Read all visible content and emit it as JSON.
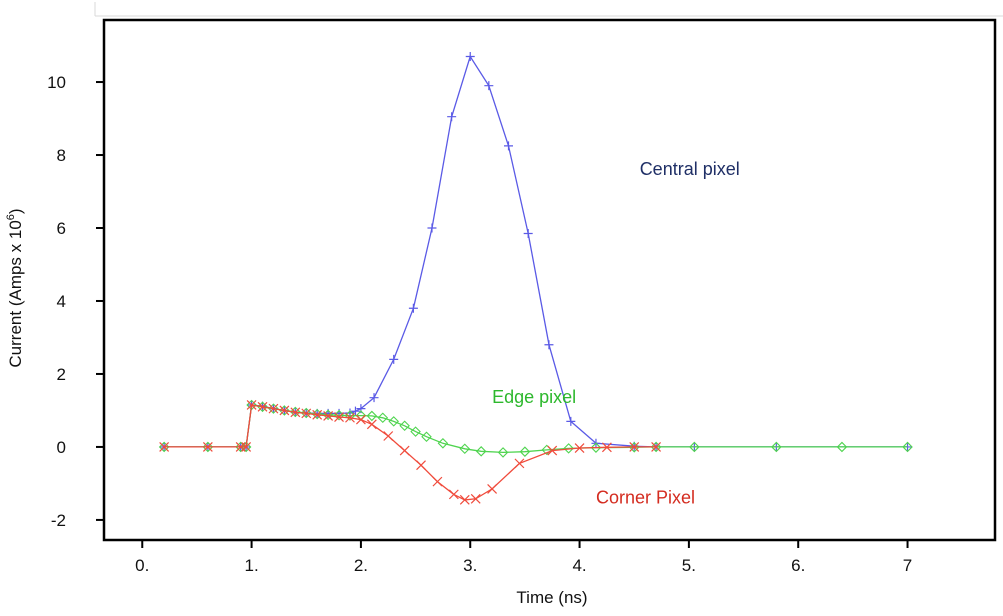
{
  "chart_data": {
    "type": "line",
    "title": "",
    "xlabel": "Time (ns)",
    "ylabel": "Current (Amps x 10",
    "ylabel_superscript": "6",
    "ylabel_suffix": ")",
    "xlim": [
      -0.35,
      7.8
    ],
    "ylim": [
      -2.55,
      11.7
    ],
    "x_ticks": [
      0,
      1,
      2,
      3,
      4,
      5,
      6,
      7
    ],
    "x_tick_labels": [
      "0.",
      "1.",
      "2.",
      "3.",
      "4.",
      "5.",
      "6.",
      "7"
    ],
    "y_ticks": [
      -2,
      0,
      2,
      4,
      6,
      8,
      10
    ],
    "y_tick_labels": [
      "-2",
      "0",
      "2",
      "4",
      "6",
      "8",
      "10"
    ],
    "grid": false,
    "legend": "none",
    "series": [
      {
        "name": "Central pixel",
        "color": "#5a5ae6",
        "label_color": "#1f2f66",
        "marker": "plus",
        "x": [
          0.2,
          0.6,
          0.9,
          0.95,
          1.0,
          1.1,
          1.2,
          1.3,
          1.4,
          1.5,
          1.6,
          1.7,
          1.8,
          1.9,
          1.95,
          2.0,
          2.12,
          2.3,
          2.48,
          2.65,
          2.83,
          3.0,
          3.17,
          3.35,
          3.53,
          3.72,
          3.92,
          4.15,
          4.5,
          4.7,
          5.05,
          5.8,
          7.0
        ],
        "y": [
          0,
          0,
          0,
          0,
          1.15,
          1.12,
          1.05,
          1.0,
          0.95,
          0.93,
          0.92,
          0.92,
          0.92,
          0.93,
          0.98,
          1.05,
          1.35,
          2.4,
          3.8,
          6.0,
          9.05,
          10.7,
          9.9,
          8.25,
          5.85,
          2.8,
          0.7,
          0.1,
          0.02,
          0,
          0,
          0,
          0
        ]
      },
      {
        "name": "Edge pixel",
        "color": "#4fd44f",
        "label_color": "#2db82d",
        "marker": "diamond",
        "x": [
          0.2,
          0.6,
          0.9,
          0.95,
          1.0,
          1.1,
          1.2,
          1.3,
          1.4,
          1.5,
          1.6,
          1.7,
          1.8,
          1.9,
          2.0,
          2.1,
          2.2,
          2.3,
          2.4,
          2.5,
          2.6,
          2.75,
          2.95,
          3.1,
          3.3,
          3.5,
          3.7,
          3.9,
          4.15,
          4.5,
          4.7,
          5.05,
          5.8,
          6.4,
          7.0
        ],
        "y": [
          0,
          0,
          0,
          0,
          1.15,
          1.1,
          1.05,
          1.0,
          0.96,
          0.93,
          0.9,
          0.88,
          0.87,
          0.86,
          0.86,
          0.85,
          0.8,
          0.7,
          0.58,
          0.42,
          0.28,
          0.1,
          -0.05,
          -0.12,
          -0.15,
          -0.13,
          -0.08,
          -0.04,
          -0.02,
          -0.01,
          0,
          0,
          0,
          0,
          0
        ]
      },
      {
        "name": "Corner Pixel",
        "color": "#f04b3c",
        "label_color": "#d42b1f",
        "marker": "x",
        "x": [
          0.2,
          0.6,
          0.9,
          0.95,
          1.0,
          1.1,
          1.2,
          1.3,
          1.4,
          1.5,
          1.6,
          1.7,
          1.8,
          1.9,
          2.0,
          2.1,
          2.25,
          2.4,
          2.55,
          2.7,
          2.85,
          2.95,
          3.05,
          3.2,
          3.45,
          3.75,
          4.0,
          4.25,
          4.5,
          4.7
        ],
        "y": [
          0,
          0,
          0,
          0,
          1.15,
          1.1,
          1.05,
          1.0,
          0.95,
          0.92,
          0.88,
          0.85,
          0.82,
          0.8,
          0.75,
          0.62,
          0.3,
          -0.1,
          -0.5,
          -0.95,
          -1.3,
          -1.45,
          -1.42,
          -1.15,
          -0.45,
          -0.1,
          -0.03,
          -0.01,
          0,
          0
        ]
      }
    ],
    "annotations": [
      {
        "text": "Central pixel",
        "series": 0,
        "x": 4.55,
        "y": 7.45
      },
      {
        "text": "Edge pixel",
        "series": 1,
        "x": 3.2,
        "y": 1.2
      },
      {
        "text": "Corner Pixel",
        "series": 2,
        "x": 4.15,
        "y": -1.55
      }
    ]
  }
}
